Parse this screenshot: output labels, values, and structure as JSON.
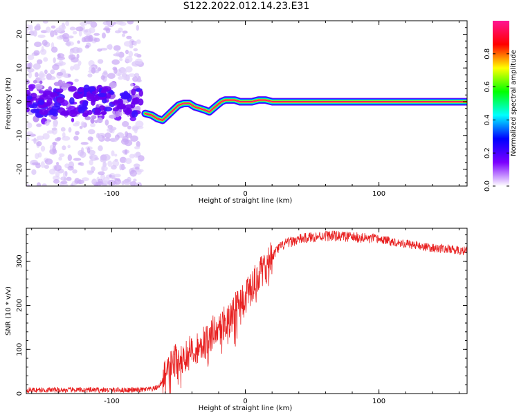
{
  "title": "S122.2022.012.14.23.E31",
  "chart_data": [
    {
      "type": "heatmap",
      "xlabel": "Height of straight line (km)",
      "ylabel": "Frequency (Hz)",
      "xlim": [
        -164,
        166
      ],
      "ylim": [
        -25,
        24
      ],
      "x_ticks": [
        -100,
        0,
        100
      ],
      "y_ticks": [
        -20,
        -10,
        0,
        10,
        20
      ],
      "colorbar": {
        "label": "Normalized spectral amplitude",
        "range": [
          0,
          1
        ],
        "ticks": [
          "0.0",
          "0.2",
          "0.4",
          "0.6",
          "0.8"
        ],
        "colormap": [
          "#ffffff",
          "#7b00ff",
          "#0000ff",
          "#00ffff",
          "#00ff00",
          "#ffff00",
          "#ff0000",
          "#ff1493"
        ]
      },
      "ridge": {
        "x": [
          -75,
          -70,
          -66,
          -62,
          -58,
          -54,
          -50,
          -46,
          -42,
          -38,
          -34,
          -30,
          -27,
          -24,
          -21,
          -18,
          -15,
          -12,
          -8,
          -4,
          0,
          5,
          10,
          15,
          20,
          25,
          60,
          95,
          130,
          166
        ],
        "y": [
          -3.5,
          -4.0,
          -5.0,
          -5.5,
          -4.0,
          -2.5,
          -1.0,
          -0.5,
          -0.5,
          -1.5,
          -2.0,
          -2.5,
          -3.0,
          -2.0,
          -1.0,
          0.0,
          0.5,
          0.5,
          0.5,
          0.0,
          0.0,
          0.0,
          0.5,
          0.5,
          0.0,
          0.0,
          0.0,
          0.0,
          0.0,
          0.0
        ]
      },
      "noise_region": {
        "x_from": -164,
        "x_to": -78,
        "y_from": -25,
        "y_to": 24
      }
    },
    {
      "type": "line",
      "xlabel": "Height of straight line (km)",
      "ylabel": "SNR (10 * v/v)",
      "xlim": [
        -164,
        166
      ],
      "ylim": [
        0,
        375
      ],
      "x_ticks": [
        -100,
        0,
        100
      ],
      "y_ticks": [
        0,
        100,
        200,
        300
      ],
      "color": "#e82020",
      "series": [
        {
          "x": [
            -164,
            -140,
            -120,
            -100,
            -80,
            -70,
            -65,
            -60,
            -55,
            -50,
            -45,
            -40,
            -35,
            -30,
            -25,
            -20,
            -15,
            -10,
            -5,
            0,
            5,
            10,
            15,
            20,
            25,
            30,
            40,
            50,
            60,
            70,
            80,
            90,
            100,
            110,
            120,
            130,
            140,
            150,
            160,
            166
          ],
          "y": [
            8,
            8,
            8,
            8,
            8,
            10,
            15,
            40,
            70,
            80,
            85,
            95,
            110,
            120,
            135,
            150,
            165,
            180,
            200,
            220,
            245,
            270,
            290,
            310,
            330,
            340,
            350,
            355,
            358,
            357,
            355,
            352,
            350,
            345,
            340,
            335,
            330,
            328,
            325,
            323
          ]
        }
      ]
    }
  ]
}
